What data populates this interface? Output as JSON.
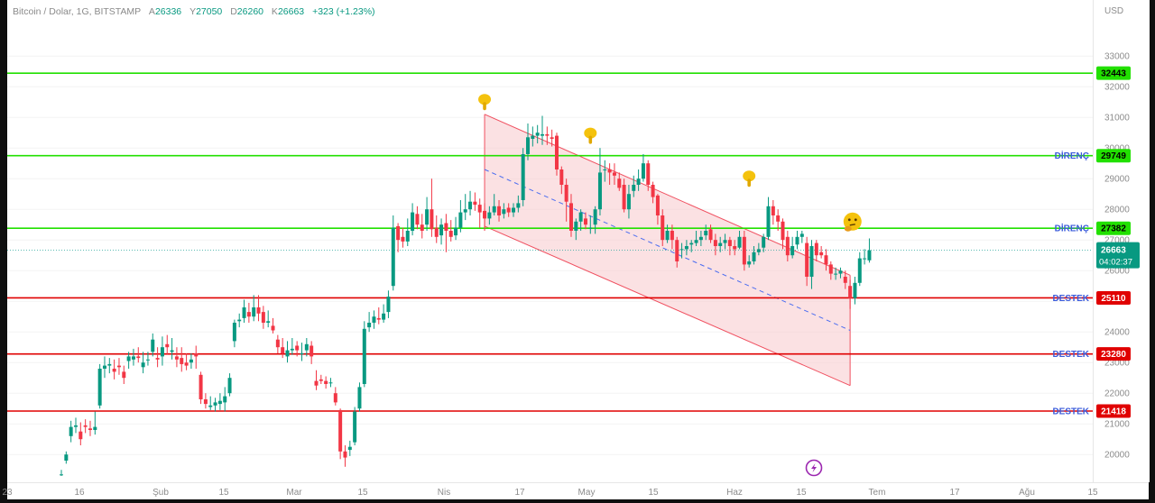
{
  "header": {
    "title": "Bitcoin / Dolar, 1G, BITSTAMP",
    "open_key": "A",
    "open": "26336",
    "high_key": "Y",
    "high": "27050",
    "low_key": "D",
    "low": "26260",
    "close_key": "K",
    "close": "26663",
    "change": "+323 (+1.23%)"
  },
  "axis": {
    "currency": "USD",
    "countdown": "04:02:37"
  },
  "colors": {
    "up": "#089981",
    "down": "#f23645",
    "resistance": "#22e000",
    "support": "#e00000",
    "channel_fill": "#f8c9cc",
    "channel_line": "#f05060",
    "midline": "#4a6cf0",
    "label_blue": "#3b5bdb"
  },
  "icons": {
    "point_down": "pointing-down-hand-icon",
    "thinking": "thinking-face-icon",
    "lightning": "lightning-icon"
  },
  "chart_data": {
    "type": "candlestick",
    "title": "Bitcoin / Dolar, 1G, BITSTAMP",
    "ylim": [
      19300,
      34300
    ],
    "y_ticks": [
      20000,
      21000,
      22000,
      23000,
      24000,
      25000,
      26000,
      27000,
      28000,
      29000,
      30000,
      31000,
      32000,
      33000
    ],
    "x_ticks": [
      "23",
      "16",
      "Şub",
      "15",
      "Mar",
      "15",
      "Nis",
      "17",
      "May",
      "15",
      "Haz",
      "15",
      "Tem",
      "17",
      "Ağu",
      "15"
    ],
    "last_price": 26663,
    "horizontal_levels": [
      {
        "value": 32443,
        "type": "resistance",
        "label": ""
      },
      {
        "value": 29749,
        "type": "resistance",
        "label": "DİRENÇ"
      },
      {
        "value": 27382,
        "type": "resistance",
        "label": "DİRENÇ"
      },
      {
        "value": 25110,
        "type": "support",
        "label": "DESTEK"
      },
      {
        "value": 23280,
        "type": "support",
        "label": "DESTEK"
      },
      {
        "value": 21418,
        "type": "support",
        "label": "DESTEK"
      }
    ],
    "channel": {
      "upper": {
        "start_index": 88,
        "start": 31100,
        "end_index": 164,
        "end": 25850
      },
      "lower": {
        "start_index": 88,
        "start": 27450,
        "end_index": 164,
        "end": 22250
      },
      "mid": {
        "start_index": 88,
        "start": 29300,
        "end_index": 164,
        "end": 24050
      }
    },
    "candles": [
      [
        19350,
        19350,
        19500,
        19300
      ],
      [
        19800,
        20000,
        20100,
        19700
      ],
      [
        20600,
        20900,
        21100,
        20400
      ],
      [
        20900,
        20950,
        21200,
        20700
      ],
      [
        20750,
        20500,
        21050,
        20300
      ],
      [
        20950,
        20900,
        21150,
        20700
      ],
      [
        20850,
        20800,
        21100,
        20600
      ],
      [
        20800,
        20900,
        21400,
        20650
      ],
      [
        21600,
        22800,
        22950,
        21500
      ],
      [
        22800,
        22900,
        23200,
        22500
      ],
      [
        22900,
        22950,
        23150,
        22650
      ],
      [
        22800,
        22700,
        23100,
        22450
      ],
      [
        22900,
        22850,
        23150,
        22600
      ],
      [
        22700,
        22500,
        22900,
        22300
      ],
      [
        23050,
        23200,
        23350,
        22800
      ],
      [
        23100,
        23200,
        23450,
        22900
      ],
      [
        23200,
        23150,
        23500,
        23000
      ],
      [
        22850,
        23000,
        23350,
        22650
      ],
      [
        23100,
        23100,
        23350,
        22900
      ],
      [
        23350,
        23750,
        23950,
        23200
      ],
      [
        23150,
        23100,
        23500,
        22850
      ],
      [
        23200,
        23500,
        23850,
        22900
      ],
      [
        23600,
        23500,
        23900,
        23250
      ],
      [
        23350,
        23400,
        23800,
        23100
      ],
      [
        23200,
        23100,
        23500,
        22850
      ],
      [
        23150,
        22950,
        23500,
        22700
      ],
      [
        23000,
        22900,
        23300,
        22750
      ],
      [
        23000,
        23100,
        23300,
        22800
      ],
      [
        23300,
        23200,
        23550,
        22800
      ],
      [
        22600,
        21800,
        22700,
        21650
      ],
      [
        21800,
        21650,
        22000,
        21500
      ],
      [
        21550,
        21600,
        21900,
        21450
      ],
      [
        21600,
        21700,
        21850,
        21400
      ],
      [
        21650,
        21750,
        22000,
        21450
      ],
      [
        21700,
        21900,
        22200,
        21400
      ],
      [
        22000,
        22500,
        22650,
        21900
      ],
      [
        23700,
        24300,
        24400,
        23500
      ],
      [
        24350,
        24400,
        24600,
        24150
      ],
      [
        24450,
        24800,
        25050,
        24300
      ],
      [
        24650,
        24500,
        24950,
        24300
      ],
      [
        24500,
        24800,
        25200,
        24350
      ],
      [
        24800,
        24600,
        25200,
        24350
      ],
      [
        24650,
        24300,
        24850,
        24100
      ],
      [
        24300,
        24350,
        24700,
        24150
      ],
      [
        24200,
        24050,
        24450,
        23950
      ],
      [
        23750,
        23500,
        23900,
        23300
      ],
      [
        23500,
        23300,
        23800,
        23150
      ],
      [
        23200,
        23400,
        23700,
        23000
      ],
      [
        23400,
        23450,
        23800,
        23250
      ],
      [
        23550,
        23400,
        23700,
        23200
      ],
      [
        23300,
        23300,
        23650,
        23050
      ],
      [
        23400,
        23600,
        23800,
        23200
      ],
      [
        23550,
        23200,
        23700,
        22950
      ],
      [
        22400,
        22250,
        22750,
        22100
      ],
      [
        22450,
        22400,
        22600,
        22300
      ],
      [
        22400,
        22300,
        22550,
        22150
      ],
      [
        22350,
        22350,
        22500,
        22200
      ],
      [
        22000,
        21700,
        22200,
        21600
      ],
      [
        21450,
        20100,
        21500,
        19850
      ],
      [
        20100,
        19900,
        20300,
        19600
      ],
      [
        20150,
        20250,
        20450,
        19950
      ],
      [
        20400,
        21400,
        21550,
        20300
      ],
      [
        21500,
        22200,
        22350,
        21400
      ],
      [
        22300,
        24100,
        24350,
        22200
      ],
      [
        24150,
        24300,
        24650,
        24000
      ],
      [
        24300,
        24500,
        24700,
        24100
      ],
      [
        24450,
        24400,
        24800,
        24250
      ],
      [
        24400,
        24600,
        24900,
        24300
      ],
      [
        24650,
        25150,
        25350,
        24450
      ],
      [
        25500,
        27400,
        27800,
        25350
      ],
      [
        27450,
        27000,
        27550,
        26600
      ],
      [
        27100,
        26950,
        27400,
        26750
      ],
      [
        26950,
        27300,
        27700,
        26800
      ],
      [
        27300,
        27900,
        28200,
        27150
      ],
      [
        27850,
        27500,
        28100,
        27350
      ],
      [
        27500,
        27300,
        27850,
        27050
      ],
      [
        27500,
        28000,
        28400,
        27300
      ],
      [
        28000,
        27350,
        29000,
        27100
      ],
      [
        27400,
        27100,
        27800,
        26900
      ],
      [
        27150,
        27500,
        27700,
        26850
      ],
      [
        27550,
        27300,
        27850,
        26600
      ],
      [
        27300,
        27100,
        27650,
        26950
      ],
      [
        27150,
        27400,
        27750,
        27000
      ],
      [
        27400,
        27900,
        28300,
        27250
      ],
      [
        27900,
        28000,
        28500,
        27650
      ],
      [
        28000,
        28250,
        28600,
        27800
      ],
      [
        28250,
        28150,
        28550,
        27950
      ],
      [
        28150,
        27900,
        28350,
        27400
      ],
      [
        27950,
        27700,
        28200,
        27300
      ],
      [
        27700,
        27900,
        28100,
        27500
      ],
      [
        27900,
        28100,
        28500,
        27800
      ],
      [
        28100,
        27800,
        28300,
        27600
      ],
      [
        27850,
        28000,
        28200,
        27700
      ],
      [
        28050,
        27900,
        28200,
        27750
      ],
      [
        27900,
        28050,
        28200,
        27750
      ],
      [
        28050,
        28200,
        28450,
        27900
      ],
      [
        28300,
        29800,
        30000,
        28100
      ],
      [
        29800,
        30350,
        30800,
        29600
      ],
      [
        30300,
        30400,
        30700,
        30050
      ],
      [
        30400,
        30500,
        30750,
        30150
      ],
      [
        30400,
        30450,
        31050,
        30100
      ],
      [
        30450,
        30400,
        30700,
        30100
      ],
      [
        30350,
        30300,
        30600,
        30050
      ],
      [
        30400,
        29300,
        30500,
        29100
      ],
      [
        29300,
        28800,
        29400,
        28500
      ],
      [
        28800,
        28250,
        29000,
        27600
      ],
      [
        28200,
        27300,
        28500,
        27100
      ],
      [
        27300,
        27600,
        27700,
        27000
      ],
      [
        27600,
        27900,
        28000,
        27300
      ],
      [
        27700,
        27500,
        27900,
        27350
      ],
      [
        27400,
        27400,
        27800,
        27200
      ],
      [
        27500,
        28000,
        28100,
        27200
      ],
      [
        28000,
        29200,
        30000,
        27800
      ],
      [
        29300,
        29300,
        29600,
        28900
      ],
      [
        29300,
        29200,
        29500,
        28800
      ],
      [
        29200,
        29100,
        29500,
        28800
      ],
      [
        29000,
        28700,
        29200,
        28600
      ],
      [
        28800,
        28000,
        29000,
        27900
      ],
      [
        28000,
        28500,
        28800,
        27700
      ],
      [
        28600,
        28800,
        29100,
        28400
      ],
      [
        28800,
        29000,
        29300,
        28600
      ],
      [
        29000,
        29500,
        29800,
        28900
      ],
      [
        29500,
        28800,
        29600,
        28600
      ],
      [
        28800,
        28400,
        28900,
        28200
      ],
      [
        28450,
        27800,
        28500,
        27500
      ],
      [
        27800,
        27000,
        28000,
        26800
      ],
      [
        27000,
        27300,
        27500,
        26900
      ],
      [
        27300,
        27000,
        27500,
        26700
      ],
      [
        27000,
        26300,
        27100,
        26100
      ],
      [
        26700,
        26700,
        26900,
        26400
      ],
      [
        26700,
        26800,
        27000,
        26500
      ],
      [
        26850,
        26900,
        27000,
        26600
      ],
      [
        26900,
        27000,
        27300,
        26800
      ],
      [
        27000,
        27100,
        27300,
        26800
      ],
      [
        27150,
        27300,
        27500,
        27000
      ],
      [
        27350,
        27000,
        27500,
        26900
      ],
      [
        27000,
        26800,
        27200,
        26500
      ],
      [
        26800,
        26900,
        27100,
        26600
      ],
      [
        26900,
        27000,
        27200,
        26700
      ],
      [
        27000,
        26800,
        27100,
        26500
      ],
      [
        26800,
        26700,
        27000,
        26500
      ],
      [
        26750,
        27100,
        27300,
        26700
      ],
      [
        27100,
        26200,
        27300,
        26000
      ],
      [
        26200,
        26300,
        26500,
        26100
      ],
      [
        26300,
        26600,
        26800,
        26200
      ],
      [
        26600,
        26700,
        26900,
        26500
      ],
      [
        26750,
        27100,
        27200,
        26600
      ],
      [
        27100,
        28100,
        28400,
        27000
      ],
      [
        28100,
        27800,
        28300,
        27500
      ],
      [
        27800,
        27600,
        28000,
        27300
      ],
      [
        27600,
        27000,
        27700,
        26700
      ],
      [
        27100,
        26500,
        27300,
        26300
      ],
      [
        26500,
        26800,
        27100,
        26400
      ],
      [
        26850,
        27100,
        27300,
        26700
      ],
      [
        27100,
        27200,
        27300,
        26900
      ],
      [
        26900,
        25800,
        27100,
        25500
      ],
      [
        25800,
        26800,
        27000,
        25400
      ],
      [
        26900,
        26500,
        27000,
        26300
      ],
      [
        26600,
        26500,
        26800,
        26400
      ],
      [
        26500,
        26200,
        26700,
        26000
      ],
      [
        26200,
        25900,
        26300,
        25700
      ],
      [
        25900,
        25900,
        26100,
        25700
      ],
      [
        25900,
        26000,
        26100,
        25750
      ],
      [
        25800,
        25600,
        26000,
        25400
      ],
      [
        25500,
        25100,
        25700,
        24750
      ],
      [
        25100,
        25600,
        25800,
        24900
      ],
      [
        25600,
        26400,
        26600,
        25500
      ],
      [
        26400,
        26400,
        26700,
        26200
      ],
      [
        26336,
        26663,
        27050,
        26260
      ]
    ]
  },
  "markers": [
    {
      "index": 88,
      "value": 31500,
      "icon": "pointing-down-hand-icon"
    },
    {
      "index": 110,
      "value": 30400,
      "icon": "pointing-down-hand-icon"
    },
    {
      "index": 143,
      "value": 29000,
      "icon": "pointing-down-hand-icon"
    },
    {
      "index": 164.5,
      "value": 27600,
      "icon": "thinking-face-icon"
    }
  ]
}
